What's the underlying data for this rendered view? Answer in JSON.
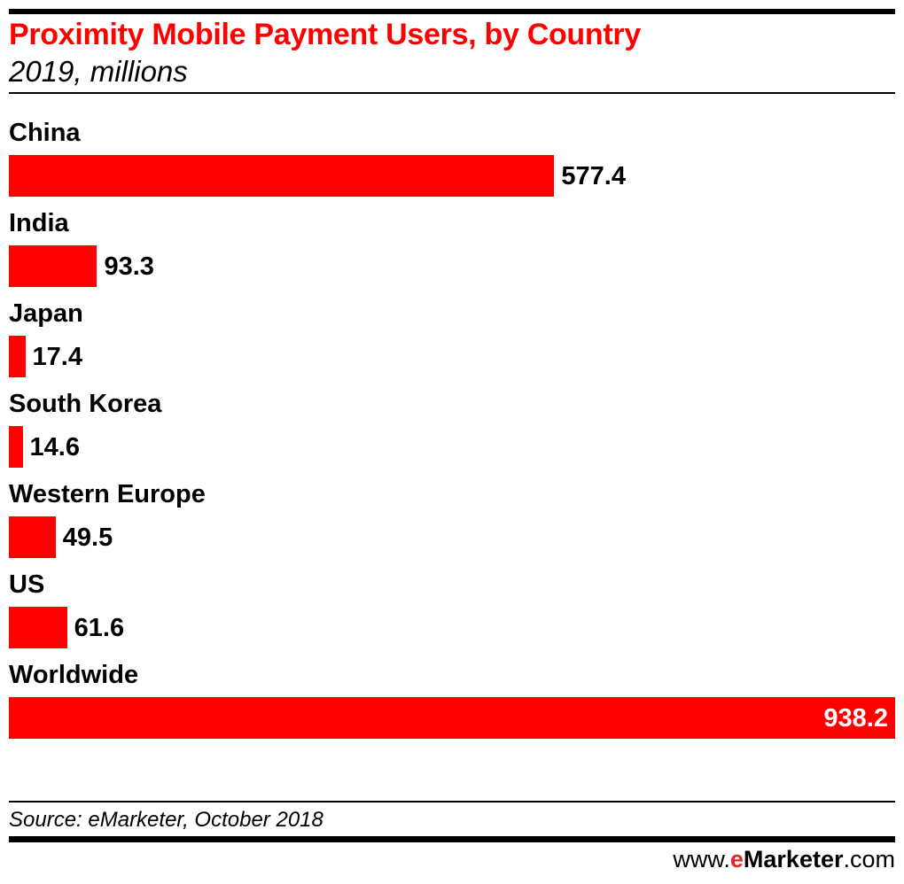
{
  "chart_data": {
    "type": "bar",
    "orientation": "horizontal",
    "title": "Proximity Mobile Payment Users, by Country",
    "subtitle": "2019, millions",
    "categories": [
      "China",
      "India",
      "Japan",
      "South Korea",
      "Western Europe",
      "US",
      "Worldwide"
    ],
    "values": [
      577.4,
      93.3,
      17.4,
      14.6,
      49.5,
      61.6,
      938.2
    ],
    "value_labels": [
      "577.4",
      "93.3",
      "17.4",
      "14.6",
      "49.5",
      "61.6",
      "938.2"
    ],
    "xlim": [
      0,
      938.2
    ],
    "grid": false,
    "bar_color": "#ff0000",
    "xlabel": "",
    "ylabel": ""
  },
  "footer": {
    "source": "Source: eMarketer, October 2018",
    "logo_prefix": "www.",
    "logo_e": "e",
    "logo_brand": "Marketer",
    "logo_suffix": ".com",
    "logo_accent": "#e8232a"
  }
}
